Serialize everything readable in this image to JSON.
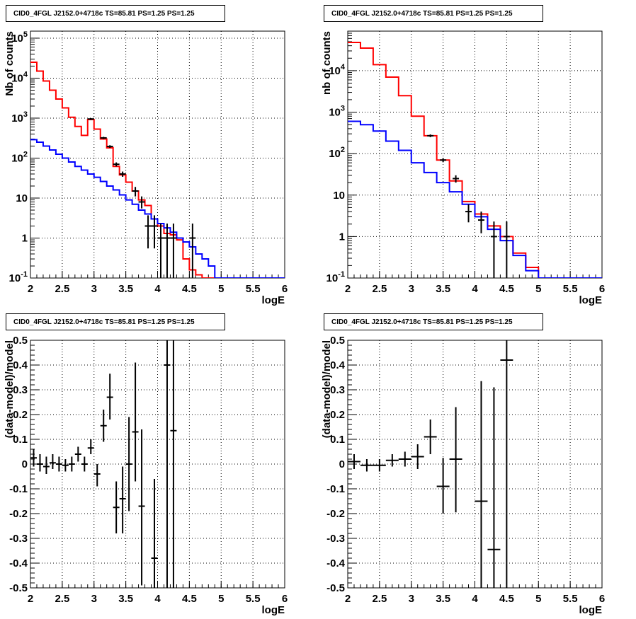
{
  "colors": {
    "data": "#000000",
    "model_total": "#ff0000",
    "model_component": "#0000ff",
    "grid": "#000000",
    "background": "#ffffff"
  },
  "chart_data": [
    {
      "type": "line",
      "title": "CID0_4FGL J2152.0+4718c TS=85.81 PS=1.25 PS=1.25",
      "xlabel": "logE",
      "ylabel": "Nb of counts",
      "xlim": [
        2,
        6
      ],
      "ylim": [
        0.1,
        150000
      ],
      "yscale": "log",
      "grid": true,
      "x_ticks": [
        "2",
        "2.5",
        "3",
        "3.5",
        "4",
        "4.5",
        "5",
        "5.5",
        "6"
      ],
      "y_ticks": [
        "10^-1",
        "1",
        "10",
        "10^2",
        "10^3",
        "10^4",
        "10^5"
      ],
      "bin_edges": [
        2.0,
        2.1,
        2.2,
        2.3,
        2.4,
        2.5,
        2.6,
        2.7,
        2.8,
        2.9,
        3.0,
        3.1,
        3.2,
        3.3,
        3.4,
        3.5,
        3.6,
        3.7,
        3.8,
        3.9,
        4.0,
        4.1,
        4.2,
        4.3,
        4.4,
        4.5,
        4.6,
        4.7,
        4.8,
        4.9,
        5.0,
        5.1,
        5.2,
        5.3,
        5.4,
        5.5,
        5.6,
        5.7,
        5.8,
        5.9,
        6.0
      ],
      "series": [
        {
          "style": "step",
          "color": "red",
          "values": [
            25000,
            15000,
            8500,
            5000,
            3000,
            1800,
            1050,
            620,
            370,
            920,
            530,
            300,
            180,
            62,
            38,
            25,
            15,
            9,
            6.5,
            3,
            2,
            1.3,
            1.2,
            0.9,
            0.3,
            0.16,
            0.12,
            0.1,
            0.1,
            0.1,
            0.1,
            0.1,
            0.1,
            0.1,
            0.1,
            0.1,
            0.1,
            0.1,
            0.1,
            0.1
          ]
        },
        {
          "style": "step",
          "color": "blue",
          "values": [
            290,
            250,
            200,
            160,
            125,
            100,
            80,
            62,
            50,
            40,
            33,
            26,
            20,
            16,
            12,
            9,
            7,
            5,
            4,
            3,
            2.3,
            1.8,
            1.4,
            1,
            0.8,
            0.6,
            0.4,
            0.3,
            0.2,
            0.1,
            0.1,
            0.1,
            0.1,
            0.1,
            0.1,
            0.1,
            0.1,
            0.1,
            0.1,
            0.1
          ]
        },
        {
          "style": "errorbar",
          "color": "black",
          "points": [
            {
              "x": 2.95,
              "y": 950,
              "ylo": 900,
              "yhi": 1000
            },
            {
              "x": 3.15,
              "y": 320,
              "ylo": 300,
              "yhi": 340
            },
            {
              "x": 3.25,
              "y": 195,
              "ylo": 180,
              "yhi": 210
            },
            {
              "x": 3.35,
              "y": 70,
              "ylo": 62,
              "yhi": 78
            },
            {
              "x": 3.45,
              "y": 40,
              "ylo": 34,
              "yhi": 46
            },
            {
              "x": 3.65,
              "y": 15,
              "ylo": 11,
              "yhi": 19
            },
            {
              "x": 3.75,
              "y": 8,
              "ylo": 5.5,
              "yhi": 11
            },
            {
              "x": 3.85,
              "y": 2,
              "ylo": 0.55,
              "yhi": 3.7
            },
            {
              "x": 3.95,
              "y": 2,
              "ylo": 0.55,
              "yhi": 3.7
            },
            {
              "x": 4.05,
              "y": 1,
              "ylo": 0.1,
              "yhi": 2.3
            },
            {
              "x": 4.15,
              "y": 1,
              "ylo": 0.1,
              "yhi": 2.3
            },
            {
              "x": 4.25,
              "y": 1,
              "ylo": 0.1,
              "yhi": 2.3
            },
            {
              "x": 4.55,
              "y": 1,
              "ylo": 0.1,
              "yhi": 2.3
            }
          ]
        }
      ]
    },
    {
      "type": "line",
      "title": "CID0_4FGL J2152.0+4718c TS=85.81 PS=1.25 PS=1.25",
      "xlabel": "logE",
      "ylabel": "nb of counts",
      "xlim": [
        2,
        6
      ],
      "ylim": [
        0.1,
        90000
      ],
      "yscale": "log",
      "grid": true,
      "x_ticks": [
        "2",
        "2.5",
        "3",
        "3.5",
        "4",
        "4.5",
        "5",
        "5.5",
        "6"
      ],
      "y_ticks": [
        "10^-1",
        "1",
        "10",
        "10^2",
        "10^3",
        "10^4"
      ],
      "bin_edges": [
        2.0,
        2.2,
        2.4,
        2.6,
        2.8,
        3.0,
        3.2,
        3.4,
        3.6,
        3.8,
        4.0,
        4.2,
        4.4,
        4.6,
        4.8,
        5.0,
        5.2,
        5.4,
        5.6,
        5.8,
        6.0
      ],
      "series": [
        {
          "style": "step",
          "color": "red",
          "values": [
            48000,
            35000,
            14000,
            7000,
            2500,
            800,
            270,
            70,
            22,
            7,
            3.5,
            1.8,
            1,
            0.4,
            0.18,
            0.1,
            0.1,
            0.1,
            0.1,
            0.1
          ]
        },
        {
          "style": "step",
          "color": "blue",
          "values": [
            600,
            500,
            350,
            200,
            120,
            60,
            35,
            20,
            12,
            6,
            3,
            1.5,
            0.8,
            0.35,
            0.15,
            0.1,
            0.1,
            0.1,
            0.1,
            0.1
          ]
        },
        {
          "style": "errorbar",
          "color": "black",
          "points": [
            {
              "x": 3.3,
              "y": 270,
              "ylo": 250,
              "yhi": 290
            },
            {
              "x": 3.5,
              "y": 70,
              "ylo": 62,
              "yhi": 78
            },
            {
              "x": 3.7,
              "y": 25,
              "ylo": 20,
              "yhi": 30
            },
            {
              "x": 3.9,
              "y": 4,
              "ylo": 2.2,
              "yhi": 6
            },
            {
              "x": 4.1,
              "y": 2.5,
              "ylo": 1.2,
              "yhi": 4
            },
            {
              "x": 4.3,
              "y": 1,
              "ylo": 0.1,
              "yhi": 2.3
            },
            {
              "x": 4.5,
              "y": 1,
              "ylo": 0.1,
              "yhi": 2.3
            }
          ]
        }
      ]
    },
    {
      "type": "scatter",
      "title": "CID0_4FGL J2152.0+4718c TS=85.81 PS=1.25 PS=1.25",
      "xlabel": "logE",
      "ylabel": "(data-model)/model",
      "xlim": [
        2,
        6
      ],
      "ylim": [
        -0.5,
        0.5
      ],
      "grid": true,
      "x_ticks": [
        "2",
        "2.5",
        "3",
        "3.5",
        "4",
        "4.5",
        "5",
        "5.5",
        "6"
      ],
      "y_ticks": [
        "-0.5",
        "-0.4",
        "-0.3",
        "-0.2",
        "-0.1",
        "0",
        "0.1",
        "0.2",
        "0.3",
        "0.4",
        "0.5"
      ],
      "series": [
        {
          "style": "errorbar",
          "color": "black",
          "xerr": 0.05,
          "points": [
            {
              "x": 2.05,
              "y": 0.025,
              "ylo": -0.01,
              "yhi": 0.06
            },
            {
              "x": 2.15,
              "y": 0.0,
              "ylo": -0.03,
              "yhi": 0.04
            },
            {
              "x": 2.25,
              "y": -0.01,
              "ylo": -0.04,
              "yhi": 0.03
            },
            {
              "x": 2.35,
              "y": 0.005,
              "ylo": -0.02,
              "yhi": 0.04
            },
            {
              "x": 2.45,
              "y": 0.0,
              "ylo": -0.03,
              "yhi": 0.03
            },
            {
              "x": 2.55,
              "y": -0.005,
              "ylo": -0.03,
              "yhi": 0.02
            },
            {
              "x": 2.65,
              "y": 0.0,
              "ylo": -0.03,
              "yhi": 0.03
            },
            {
              "x": 2.75,
              "y": 0.04,
              "ylo": 0.01,
              "yhi": 0.07
            },
            {
              "x": 2.85,
              "y": 0.0,
              "ylo": -0.03,
              "yhi": 0.03
            },
            {
              "x": 2.95,
              "y": 0.065,
              "ylo": 0.04,
              "yhi": 0.1
            },
            {
              "x": 3.05,
              "y": -0.04,
              "ylo": -0.09,
              "yhi": 0.0
            },
            {
              "x": 3.15,
              "y": 0.155,
              "ylo": 0.09,
              "yhi": 0.22
            },
            {
              "x": 3.25,
              "y": 0.27,
              "ylo": 0.18,
              "yhi": 0.365
            },
            {
              "x": 3.35,
              "y": -0.175,
              "ylo": -0.28,
              "yhi": -0.07
            },
            {
              "x": 3.45,
              "y": -0.14,
              "ylo": -0.28,
              "yhi": -0.01
            },
            {
              "x": 3.55,
              "y": 0.0,
              "ylo": -0.19,
              "yhi": 0.19
            },
            {
              "x": 3.65,
              "y": 0.13,
              "ylo": -0.07,
              "yhi": 0.41
            },
            {
              "x": 3.75,
              "y": -0.17,
              "ylo": -0.49,
              "yhi": 0.14
            },
            {
              "x": 3.95,
              "y": -0.38,
              "ylo": -0.5,
              "yhi": -0.06
            },
            {
              "x": 4.15,
              "y": 0.4,
              "ylo": -0.5,
              "yhi": 0.5
            },
            {
              "x": 4.25,
              "y": 0.135,
              "ylo": -0.5,
              "yhi": 0.5
            }
          ]
        }
      ]
    },
    {
      "type": "scatter",
      "title": "CID0_4FGL J2152.0+4718c TS=85.81 PS=1.25 PS=1.25",
      "xlabel": "logE",
      "ylabel": "(data-model)/model",
      "xlim": [
        2,
        6
      ],
      "ylim": [
        -0.5,
        0.5
      ],
      "grid": true,
      "x_ticks": [
        "2",
        "2.5",
        "3",
        "3.5",
        "4",
        "4.5",
        "5",
        "5.5",
        "6"
      ],
      "y_ticks": [
        "-0.5",
        "-0.4",
        "-0.3",
        "-0.2",
        "-0.1",
        "0",
        "0.1",
        "0.2",
        "0.3",
        "0.4",
        "0.5"
      ],
      "series": [
        {
          "style": "errorbar",
          "color": "black",
          "xerr": 0.1,
          "points": [
            {
              "x": 2.1,
              "y": 0.01,
              "ylo": -0.02,
              "yhi": 0.04
            },
            {
              "x": 2.3,
              "y": -0.005,
              "ylo": -0.03,
              "yhi": 0.02
            },
            {
              "x": 2.5,
              "y": -0.005,
              "ylo": -0.03,
              "yhi": 0.02
            },
            {
              "x": 2.7,
              "y": 0.015,
              "ylo": -0.01,
              "yhi": 0.04
            },
            {
              "x": 2.9,
              "y": 0.02,
              "ylo": -0.01,
              "yhi": 0.05
            },
            {
              "x": 3.1,
              "y": 0.03,
              "ylo": -0.02,
              "yhi": 0.08
            },
            {
              "x": 3.3,
              "y": 0.11,
              "ylo": 0.04,
              "yhi": 0.18
            },
            {
              "x": 3.5,
              "y": -0.09,
              "ylo": -0.2,
              "yhi": 0.025
            },
            {
              "x": 3.7,
              "y": 0.02,
              "ylo": -0.195,
              "yhi": 0.23
            },
            {
              "x": 4.1,
              "y": -0.15,
              "ylo": -0.5,
              "yhi": 0.335
            },
            {
              "x": 4.3,
              "y": -0.345,
              "ylo": -0.5,
              "yhi": 0.31
            },
            {
              "x": 4.5,
              "y": 0.42,
              "ylo": -0.5,
              "yhi": 0.5
            }
          ]
        }
      ]
    }
  ]
}
